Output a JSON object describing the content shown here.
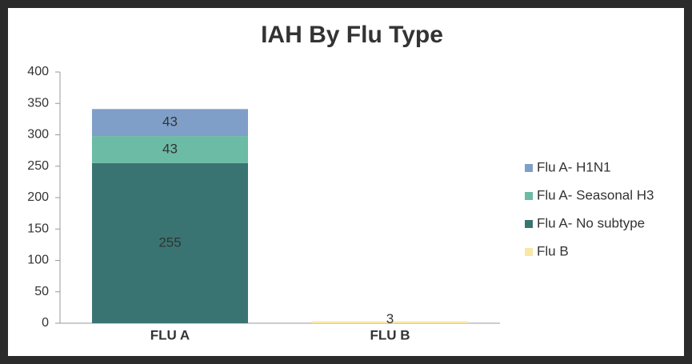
{
  "chart_data": {
    "type": "stacked-bar",
    "title": "IAH By Flu Type",
    "categories": [
      "FLU A",
      "FLU B"
    ],
    "series": [
      {
        "name": "Flu A- H1N1",
        "color": "#7f9fc8",
        "values": [
          43,
          null
        ]
      },
      {
        "name": "Flu A- Seasonal H3",
        "color": "#6cbba4",
        "values": [
          43,
          null
        ]
      },
      {
        "name": "Flu A- No subtype",
        "color": "#3a7472",
        "values": [
          255,
          null
        ]
      },
      {
        "name": "Flu B",
        "color": "#fbe7a5",
        "values": [
          null,
          3
        ]
      }
    ],
    "ylim": [
      0,
      400
    ],
    "yticks": [
      0,
      50,
      100,
      150,
      200,
      250,
      300,
      350,
      400
    ],
    "grid": false,
    "legend": "right"
  }
}
